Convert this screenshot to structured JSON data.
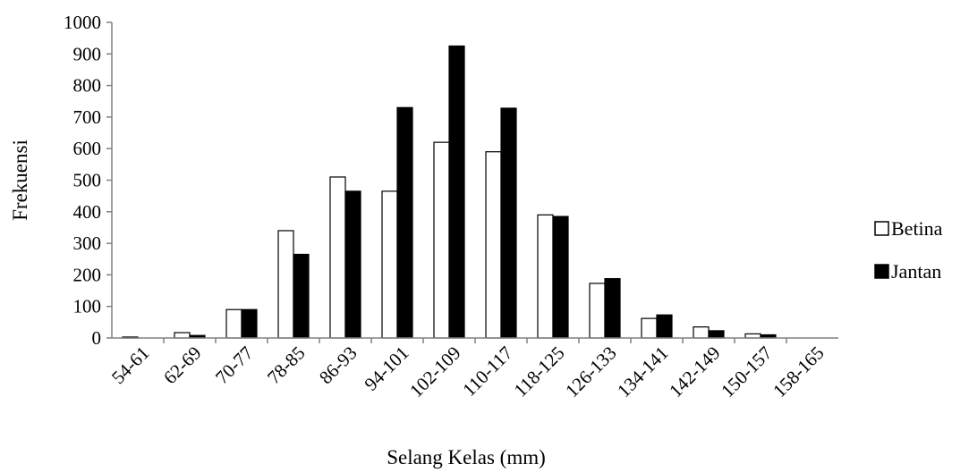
{
  "chart_data": {
    "type": "bar",
    "title": "",
    "xlabel": "Selang Kelas (mm)",
    "ylabel": "Frekuensi",
    "ylim": [
      0,
      1000
    ],
    "yticks": [
      "0",
      "100",
      "200",
      "300",
      "400",
      "500",
      "600",
      "700",
      "800",
      "900",
      "1000"
    ],
    "grid": false,
    "legend_position": "right",
    "categories": [
      "54-61",
      "62-69",
      "70-77",
      "78-85",
      "86-93",
      "94-101",
      "102-109",
      "110-117",
      "118-125",
      "126-133",
      "134-141",
      "142-149",
      "150-157",
      "158-165"
    ],
    "series": [
      {
        "name": "Betina",
        "color": "#ffffff",
        "stroke": "#000000",
        "values": [
          3,
          17,
          90,
          340,
          510,
          465,
          620,
          590,
          390,
          173,
          62,
          35,
          13,
          0
        ]
      },
      {
        "name": "Jantan",
        "color": "#000000",
        "stroke": "#000000",
        "values": [
          0,
          8,
          90,
          265,
          465,
          730,
          925,
          728,
          385,
          188,
          73,
          23,
          10,
          0
        ]
      }
    ]
  }
}
